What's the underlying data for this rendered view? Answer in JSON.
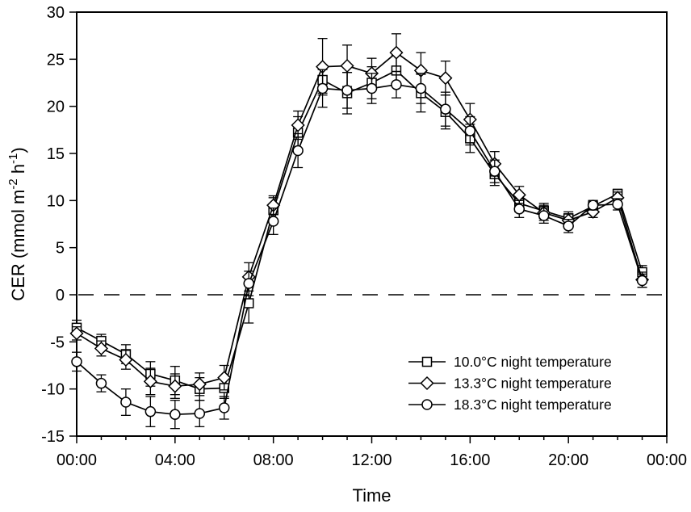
{
  "figure": {
    "background": "#ffffff",
    "foreground": "#000000",
    "marker_fill": "#ffffff"
  },
  "chart_data": {
    "type": "line",
    "title": "",
    "xlabel": "Time",
    "ylabel": "CER (mmol m-2 h-1)",
    "ylabel_parts": [
      {
        "text": "CER (mmol m",
        "sup": false
      },
      {
        "text": "-2",
        "sup": true
      },
      {
        "text": " h",
        "sup": false
      },
      {
        "text": "-1",
        "sup": true
      },
      {
        "text": ")",
        "sup": false
      }
    ],
    "xlim": [
      0,
      24
    ],
    "ylim": [
      -15,
      30
    ],
    "grid": false,
    "legend_position": "lower-right-inside",
    "reference_line": {
      "y": 0,
      "style": "dashed"
    },
    "x_major_ticks": {
      "hours": [
        0,
        4,
        8,
        12,
        16,
        20,
        24
      ],
      "labels": [
        "00:00",
        "04:00",
        "08:00",
        "12:00",
        "16:00",
        "20:00",
        "00:00"
      ]
    },
    "x_minor_tick_every_hours": 1,
    "y_ticks": {
      "values": [
        30,
        25,
        20,
        15,
        10,
        5,
        0,
        -5,
        -10,
        -15
      ],
      "labels": [
        "30",
        "25",
        "20",
        "15",
        "10",
        "5",
        "0",
        "-5",
        "-10",
        "-15"
      ]
    },
    "x_hours": [
      0,
      1,
      2,
      3,
      4,
      5,
      6,
      7,
      8,
      9,
      10,
      11,
      12,
      13,
      14,
      15,
      16,
      17,
      18,
      19,
      20,
      21,
      22,
      23
    ],
    "series": [
      {
        "name": "10.0°C night temperature",
        "marker": "square",
        "color": "#000000",
        "values": [
          -3.5,
          -4.9,
          -6.3,
          -8.4,
          -9.1,
          -10.0,
          -9.9,
          -0.9,
          9.0,
          17.2,
          22.8,
          21.4,
          22.5,
          23.8,
          21.4,
          19.4,
          16.6,
          12.8,
          9.7,
          8.9,
          8.1,
          9.4,
          10.7,
          2.4
        ],
        "errors": [
          0.8,
          0.7,
          1.0,
          1.3,
          1.5,
          1.2,
          1.1,
          2.1,
          1.3,
          1.7,
          1.4,
          2.2,
          1.7,
          1.6,
          2.0,
          1.8,
          1.5,
          1.2,
          0.9,
          0.8,
          0.7,
          0.6,
          0.5,
          0.7
        ]
      },
      {
        "name": "13.3°C night temperature",
        "marker": "diamond",
        "color": "#000000",
        "values": [
          -4.1,
          -5.7,
          -6.9,
          -9.2,
          -9.7,
          -9.5,
          -8.8,
          1.9,
          9.5,
          18.0,
          24.2,
          24.3,
          23.5,
          25.7,
          23.8,
          23.0,
          18.6,
          13.9,
          10.6,
          8.7,
          7.9,
          8.8,
          10.3,
          1.6
        ],
        "errors": [
          0.7,
          0.8,
          1.0,
          1.4,
          1.3,
          1.2,
          1.3,
          1.5,
          1.0,
          1.5,
          3.0,
          2.2,
          1.6,
          2.0,
          1.9,
          1.8,
          1.7,
          1.3,
          0.9,
          0.8,
          0.7,
          0.6,
          0.6,
          0.8
        ]
      },
      {
        "name": "18.3°C night temperature",
        "marker": "circle",
        "color": "#000000",
        "values": [
          -7.1,
          -9.4,
          -11.4,
          -12.4,
          -12.7,
          -12.6,
          -12.0,
          1.2,
          7.8,
          15.3,
          21.9,
          21.7,
          21.9,
          22.3,
          21.9,
          19.7,
          17.4,
          13.1,
          9.1,
          8.4,
          7.3,
          9.5,
          9.6,
          1.5
        ],
        "errors": [
          1.0,
          0.9,
          1.4,
          1.6,
          1.5,
          1.4,
          1.2,
          1.3,
          1.4,
          1.8,
          2.0,
          1.9,
          1.6,
          1.4,
          1.6,
          1.8,
          1.5,
          1.2,
          0.9,
          0.8,
          0.7,
          0.5,
          0.6,
          0.7
        ]
      }
    ]
  }
}
